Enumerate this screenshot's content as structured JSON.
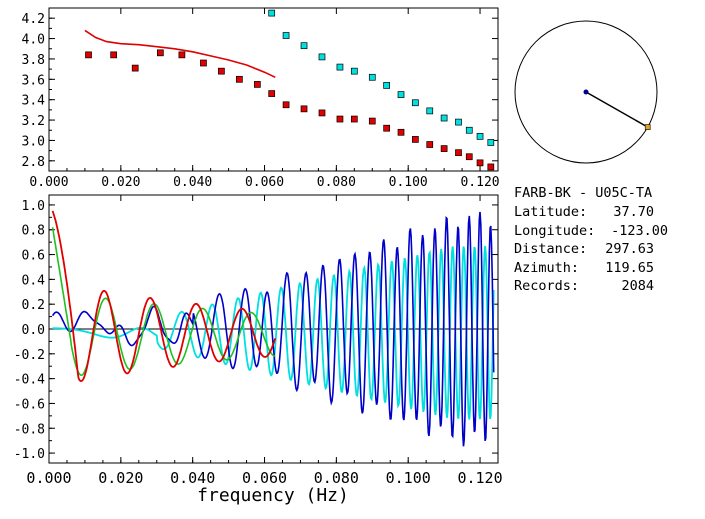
{
  "chart_data": [
    {
      "type": "scatter",
      "xlim": [
        0.0,
        0.125
      ],
      "ylim": [
        2.7,
        4.3
      ],
      "yticks": [
        "4.2",
        "4.0",
        "3.8",
        "3.6",
        "3.4",
        "3.2",
        "3.0",
        "2.8"
      ],
      "xticks": [
        "0.000",
        "0.020",
        "0.040",
        "0.060",
        "0.080",
        "0.100",
        "0.120"
      ],
      "colors": {
        "red_points": "#e00000",
        "cyan_points": "#00e0e0",
        "curve": "#e00000"
      },
      "series": [
        {
          "color": "red",
          "kind": "squares",
          "x": [
            0.011,
            0.018,
            0.024,
            0.031,
            0.037,
            0.043,
            0.048,
            0.053,
            0.058,
            0.062,
            0.066,
            0.071,
            0.076,
            0.081,
            0.085,
            0.09,
            0.094,
            0.098,
            0.102,
            0.106,
            0.11,
            0.114,
            0.117,
            0.12,
            0.123
          ],
          "y": [
            3.84,
            3.84,
            3.71,
            3.86,
            3.84,
            3.76,
            3.68,
            3.6,
            3.55,
            3.46,
            3.35,
            3.31,
            3.27,
            3.21,
            3.21,
            3.19,
            3.12,
            3.08,
            3.01,
            2.96,
            2.92,
            2.88,
            2.84,
            2.78,
            2.74
          ]
        },
        {
          "color": "cyan",
          "kind": "squares",
          "x": [
            0.062,
            0.066,
            0.071,
            0.076,
            0.081,
            0.085,
            0.09,
            0.094,
            0.098,
            0.102,
            0.106,
            0.11,
            0.114,
            0.117,
            0.12,
            0.123
          ],
          "y": [
            4.25,
            4.03,
            3.93,
            3.82,
            3.72,
            3.68,
            3.62,
            3.54,
            3.45,
            3.37,
            3.29,
            3.22,
            3.18,
            3.1,
            3.04,
            2.98
          ]
        },
        {
          "color": "red",
          "kind": "line",
          "x": [
            0.01,
            0.013,
            0.016,
            0.02,
            0.025,
            0.03,
            0.035,
            0.04,
            0.045,
            0.05,
            0.055,
            0.06,
            0.063
          ],
          "y": [
            4.08,
            4.01,
            3.97,
            3.95,
            3.94,
            3.92,
            3.9,
            3.87,
            3.83,
            3.79,
            3.74,
            3.67,
            3.62
          ]
        }
      ]
    },
    {
      "type": "line",
      "xlim": [
        0.0,
        0.125
      ],
      "ylim": [
        -1.08,
        1.08
      ],
      "yticks": [
        "1.0",
        "0.8",
        "0.6",
        "0.4",
        "0.2",
        "0.0",
        "-0.2",
        "-0.4",
        "-0.6",
        "-0.8",
        "-1.0"
      ],
      "xticks": [
        "0.000",
        "0.020",
        "0.040",
        "0.060",
        "0.080",
        "0.100",
        "0.120"
      ],
      "xlabel": "frequency (Hz)",
      "colors": {
        "blue": "#0000c8",
        "cyan": "#00e0e0",
        "green": "#20c020",
        "red": "#e00000",
        "zero": "#000000"
      }
    }
  ],
  "info": {
    "title": "FARB-BK  - U05C-TA",
    "latitude_label": "Latitude:",
    "latitude_value": "37.70",
    "longitude_label": "Longitude:",
    "longitude_value": "-123.00",
    "distance_label": "Distance:",
    "distance_value": "297.63",
    "azimuth_label": "Azimuth:",
    "azimuth_value": "119.65",
    "records_label": "Records:",
    "records_value": "2084"
  },
  "compass": {
    "azimuth_deg": 119.65,
    "color_line": "#000000",
    "color_center": "#00008b",
    "color_end": "#e0a020"
  }
}
